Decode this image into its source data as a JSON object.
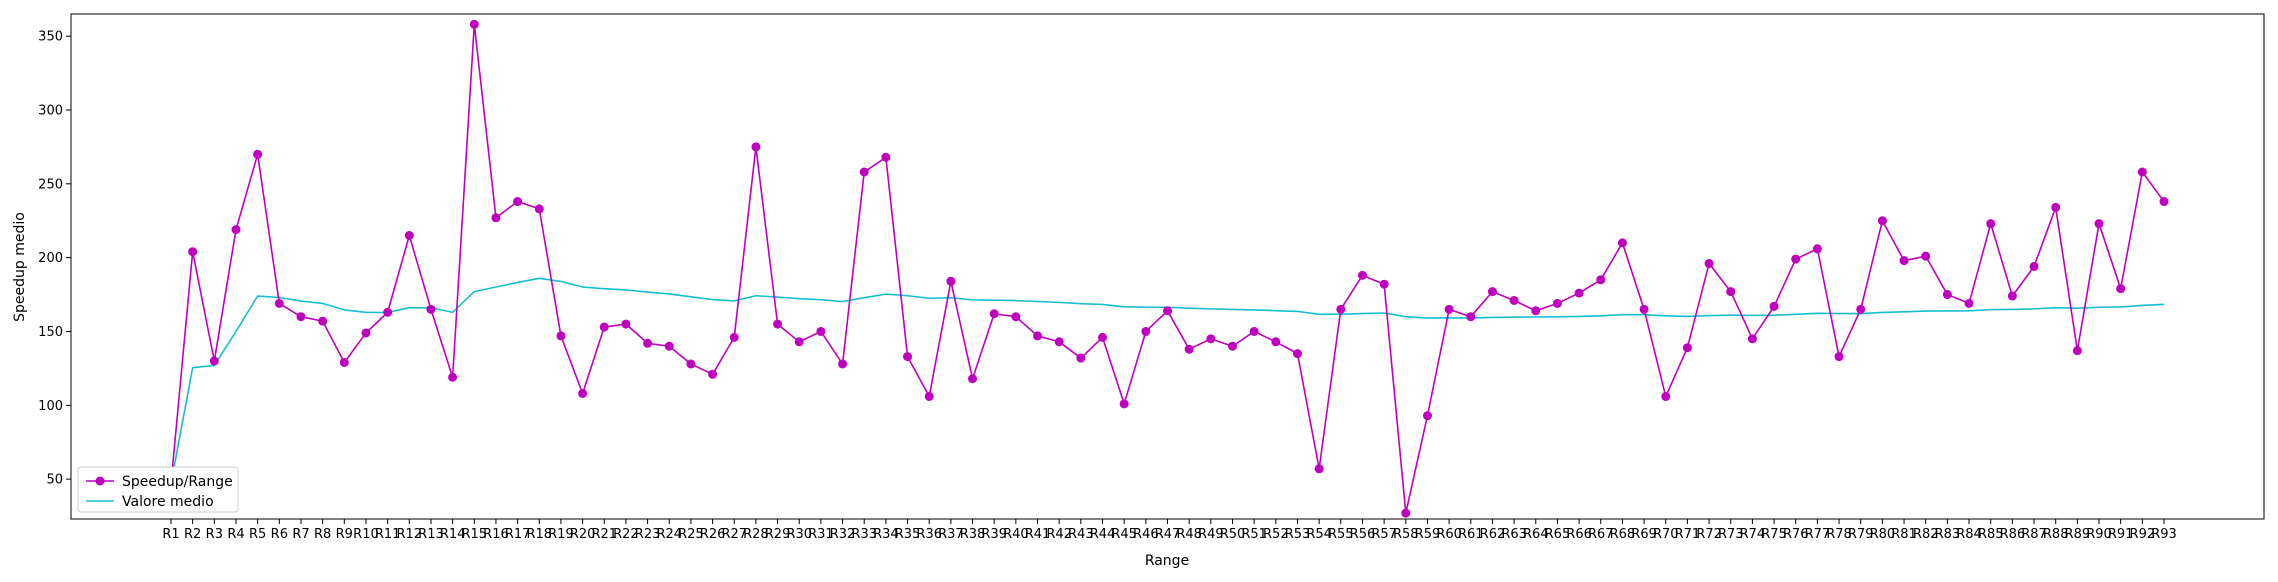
{
  "chart_data": {
    "type": "line",
    "title": "",
    "xlabel": "Range",
    "ylabel": "Speedup medio",
    "ylim": [
      23,
      365
    ],
    "yticks": [
      50,
      100,
      150,
      200,
      250,
      300,
      350
    ],
    "grid": false,
    "legend_position": "bottom-left",
    "categories": [
      "R1",
      "R2",
      "R3",
      "R4",
      "R5",
      "R6",
      "R7",
      "R8",
      "R9",
      "R10",
      "R11",
      "R12",
      "R13",
      "R14",
      "R15",
      "R16",
      "R17",
      "R18",
      "R19",
      "R20",
      "R21",
      "R22",
      "R23",
      "R24",
      "R25",
      "R26",
      "R27",
      "R28",
      "R29",
      "R30",
      "R31",
      "R32",
      "R33",
      "R34",
      "R35",
      "R36",
      "R37",
      "R38",
      "R39",
      "R40",
      "R41",
      "R42",
      "R43",
      "R44",
      "R45",
      "R46",
      "R47",
      "R48",
      "R49",
      "R50",
      "R51",
      "R52",
      "R53",
      "R54",
      "R55",
      "R56",
      "R57",
      "R58",
      "R59",
      "R60",
      "R61",
      "R62",
      "R63",
      "R64",
      "R65",
      "R66",
      "R67",
      "R68",
      "R69",
      "R70",
      "R71",
      "R72",
      "R73",
      "R74",
      "R75",
      "R76",
      "R77",
      "R78",
      "R79",
      "R80",
      "R81",
      "R82",
      "R83",
      "R84",
      "R85",
      "R86",
      "R87",
      "R88",
      "R89",
      "R90",
      "R91",
      "R92",
      "R93"
    ],
    "series": [
      {
        "name": "Speedup/Range",
        "color": "#bf00bf",
        "marker": "circle",
        "values": [
          47,
          204,
          130,
          219,
          270,
          169,
          160,
          157,
          129,
          149,
          163,
          215,
          165,
          119,
          358,
          227,
          238,
          233,
          147,
          108,
          153,
          155,
          142,
          140,
          128,
          121,
          146,
          275,
          155,
          143,
          150,
          128,
          258,
          268,
          133,
          106,
          184,
          118,
          162,
          160,
          147,
          143,
          132,
          146,
          101,
          150,
          164,
          138,
          145,
          140,
          150,
          143,
          135,
          57,
          165,
          188,
          182,
          27,
          93,
          165,
          160,
          177,
          171,
          164,
          169,
          176,
          185,
          210,
          165,
          106,
          139,
          196,
          177,
          145,
          167,
          199,
          206,
          133,
          165,
          225,
          198,
          201,
          175,
          169,
          223,
          174,
          194,
          234,
          137,
          223,
          179,
          258,
          238
        ]
      },
      {
        "name": "Valore medio",
        "color": "#17becf",
        "marker": "none",
        "values": [
          47,
          125.5,
          127,
          150,
          174,
          173,
          170.6,
          169,
          164.6,
          163,
          162.8,
          166.1,
          166,
          163,
          177,
          180.1,
          183.2,
          186,
          183.9,
          180.1,
          179,
          178.1,
          176.7,
          175.4,
          173.5,
          171.6,
          170.7,
          174.2,
          173.3,
          172.2,
          171.5,
          170.2,
          172.9,
          175.3,
          174.2,
          172.5,
          172.8,
          171.4,
          171.2,
          170.9,
          170.3,
          169.7,
          168.8,
          168.3,
          166.7,
          166.4,
          166.4,
          165.8,
          165.3,
          164.9,
          164.6,
          164.1,
          163.6,
          161.6,
          161.7,
          162.1,
          162.5,
          160,
          159.1,
          159.2,
          159.2,
          159.5,
          159.7,
          159.8,
          159.9,
          160.2,
          160.6,
          161.4,
          161.4,
          160.6,
          160.2,
          160.8,
          161.0,
          160.9,
          161.0,
          161.6,
          162.3,
          162.1,
          162.1,
          162.9,
          163.3,
          163.8,
          163.9,
          164.0,
          164.8,
          164.9,
          165.3,
          166.1,
          165.8,
          166.4,
          166.6,
          167.6,
          168.4
        ]
      }
    ]
  }
}
